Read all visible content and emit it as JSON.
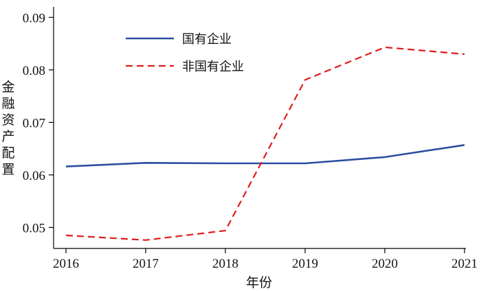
{
  "chart_data": {
    "type": "line",
    "xlabel": "年份",
    "ylabel": "金融资产配置",
    "x": [
      2016,
      2017,
      2018,
      2019,
      2020,
      2021
    ],
    "ylim": [
      0.046,
      0.092
    ],
    "yticks": [
      0.05,
      0.06,
      0.07,
      0.08,
      0.09
    ],
    "ytick_labels": [
      "0.05",
      "0.06",
      "0.07",
      "0.08",
      "0.09"
    ],
    "xtick_labels": [
      "2016",
      "2017",
      "2018",
      "2019",
      "2020",
      "2021"
    ],
    "legend_position": "top-left",
    "grid": false,
    "series": [
      {
        "name": "国有企业",
        "values": [
          0.0616,
          0.0623,
          0.0622,
          0.0622,
          0.0634,
          0.0657
        ],
        "color": "#2b4ea2",
        "style": "solid"
      },
      {
        "name": "非国有企业",
        "values": [
          0.0485,
          0.0476,
          0.0494,
          0.0781,
          0.0843,
          0.083
        ],
        "color": "#e01b1b",
        "style": "dashed"
      }
    ]
  }
}
